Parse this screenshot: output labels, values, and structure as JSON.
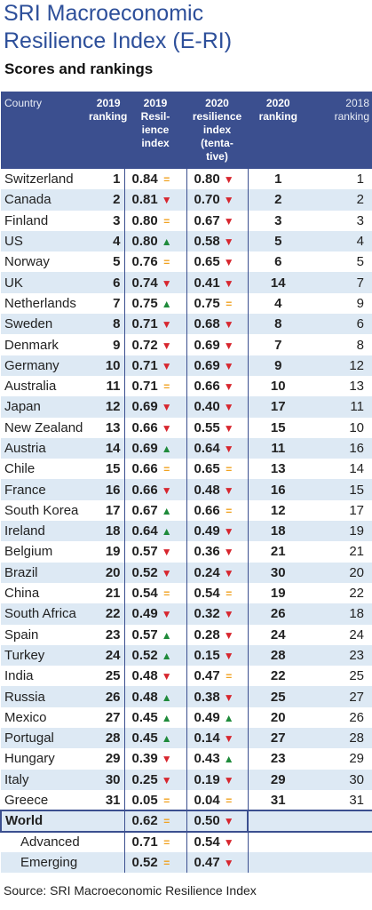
{
  "title_line1": "SRI Macroeconomic",
  "title_line2": "Resilience Index (E-RI)",
  "subtitle": "Scores and rankings",
  "headers": {
    "country": "Country",
    "rank2019_a": "2019",
    "rank2019_b": "ranking",
    "idx2019_a": "2019",
    "idx2019_b": "Resil-",
    "idx2019_c": "ience",
    "idx2019_d": "index",
    "idx2020_a": "2020",
    "idx2020_b": "resilience",
    "idx2020_c": "index",
    "idx2020_d": "(tenta-",
    "idx2020_e": "tive)",
    "rank2020_a": "2020",
    "rank2020_b": "ranking",
    "rank2018_a": "2018",
    "rank2018_b": "ranking"
  },
  "colors": {
    "header_bg": "#3b4f8f",
    "stripe": "#dde9f4",
    "up": "#1e8a3a",
    "down": "#d7262e",
    "eq": "#f0a220",
    "title": "#2d4f9a"
  },
  "chart_data": {
    "type": "table",
    "columns": [
      "Country",
      "2019 ranking",
      "2019 Resilience index",
      "2020 resilience index (tentative)",
      "2020 ranking",
      "2018 ranking"
    ],
    "rows": [
      {
        "country": "Switzerland",
        "r2019": "1",
        "i2019": "0.84",
        "m2019": "eq",
        "i2020": "0.80",
        "m2020": "down",
        "r2020": "1",
        "r2018": "1"
      },
      {
        "country": "Canada",
        "r2019": "2",
        "i2019": "0.81",
        "m2019": "down",
        "i2020": "0.70",
        "m2020": "down",
        "r2020": "2",
        "r2018": "2"
      },
      {
        "country": "Finland",
        "r2019": "3",
        "i2019": "0.80",
        "m2019": "eq",
        "i2020": "0.67",
        "m2020": "down",
        "r2020": "3",
        "r2018": "3"
      },
      {
        "country": "US",
        "r2019": "4",
        "i2019": "0.80",
        "m2019": "up",
        "i2020": "0.58",
        "m2020": "down",
        "r2020": "5",
        "r2018": "4"
      },
      {
        "country": "Norway",
        "r2019": "5",
        "i2019": "0.76",
        "m2019": "eq",
        "i2020": "0.65",
        "m2020": "down",
        "r2020": "6",
        "r2018": "5"
      },
      {
        "country": "UK",
        "r2019": "6",
        "i2019": "0.74",
        "m2019": "down",
        "i2020": "0.41",
        "m2020": "down",
        "r2020": "14",
        "r2018": "7"
      },
      {
        "country": "Netherlands",
        "r2019": "7",
        "i2019": "0.75",
        "m2019": "up",
        "i2020": "0.75",
        "m2020": "eq",
        "r2020": "4",
        "r2018": "9"
      },
      {
        "country": "Sweden",
        "r2019": "8",
        "i2019": "0.71",
        "m2019": "down",
        "i2020": "0.68",
        "m2020": "down",
        "r2020": "8",
        "r2018": "6"
      },
      {
        "country": "Denmark",
        "r2019": "9",
        "i2019": "0.72",
        "m2019": "down",
        "i2020": "0.69",
        "m2020": "down",
        "r2020": "7",
        "r2018": "8"
      },
      {
        "country": "Germany",
        "r2019": "10",
        "i2019": "0.71",
        "m2019": "down",
        "i2020": "0.69",
        "m2020": "down",
        "r2020": "9",
        "r2018": "12"
      },
      {
        "country": "Australia",
        "r2019": "11",
        "i2019": "0.71",
        "m2019": "eq",
        "i2020": "0.66",
        "m2020": "down",
        "r2020": "10",
        "r2018": "13"
      },
      {
        "country": "Japan",
        "r2019": "12",
        "i2019": "0.69",
        "m2019": "down",
        "i2020": "0.40",
        "m2020": "down",
        "r2020": "17",
        "r2018": "11"
      },
      {
        "country": "New Zealand",
        "r2019": "13",
        "i2019": "0.66",
        "m2019": "down",
        "i2020": "0.55",
        "m2020": "down",
        "r2020": "15",
        "r2018": "10"
      },
      {
        "country": "Austria",
        "r2019": "14",
        "i2019": "0.69",
        "m2019": "up",
        "i2020": "0.64",
        "m2020": "down",
        "r2020": "11",
        "r2018": "16"
      },
      {
        "country": "Chile",
        "r2019": "15",
        "i2019": "0.66",
        "m2019": "eq",
        "i2020": "0.65",
        "m2020": "eq",
        "r2020": "13",
        "r2018": "14"
      },
      {
        "country": "France",
        "r2019": "16",
        "i2019": "0.66",
        "m2019": "down",
        "i2020": "0.48",
        "m2020": "down",
        "r2020": "16",
        "r2018": "15"
      },
      {
        "country": "South Korea",
        "r2019": "17",
        "i2019": "0.67",
        "m2019": "up",
        "i2020": "0.66",
        "m2020": "eq",
        "r2020": "12",
        "r2018": "17"
      },
      {
        "country": "Ireland",
        "r2019": "18",
        "i2019": "0.64",
        "m2019": "up",
        "i2020": "0.49",
        "m2020": "down",
        "r2020": "18",
        "r2018": "19"
      },
      {
        "country": "Belgium",
        "r2019": "19",
        "i2019": "0.57",
        "m2019": "down",
        "i2020": "0.36",
        "m2020": "down",
        "r2020": "21",
        "r2018": "21"
      },
      {
        "country": "Brazil",
        "r2019": "20",
        "i2019": "0.52",
        "m2019": "down",
        "i2020": "0.24",
        "m2020": "down",
        "r2020": "30",
        "r2018": "20"
      },
      {
        "country": "China",
        "r2019": "21",
        "i2019": "0.54",
        "m2019": "eq",
        "i2020": "0.54",
        "m2020": "eq",
        "r2020": "19",
        "r2018": "22"
      },
      {
        "country": "South Africa",
        "r2019": "22",
        "i2019": "0.49",
        "m2019": "down",
        "i2020": "0.32",
        "m2020": "down",
        "r2020": "26",
        "r2018": "18"
      },
      {
        "country": "Spain",
        "r2019": "23",
        "i2019": "0.57",
        "m2019": "up",
        "i2020": "0.28",
        "m2020": "down",
        "r2020": "24",
        "r2018": "24"
      },
      {
        "country": "Turkey",
        "r2019": "24",
        "i2019": "0.52",
        "m2019": "up",
        "i2020": "0.15",
        "m2020": "down",
        "r2020": "28",
        "r2018": "23"
      },
      {
        "country": "India",
        "r2019": "25",
        "i2019": "0.48",
        "m2019": "down",
        "i2020": "0.47",
        "m2020": "eq",
        "r2020": "22",
        "r2018": "25"
      },
      {
        "country": "Russia",
        "r2019": "26",
        "i2019": "0.48",
        "m2019": "up",
        "i2020": "0.38",
        "m2020": "down",
        "r2020": "25",
        "r2018": "27"
      },
      {
        "country": "Mexico",
        "r2019": "27",
        "i2019": "0.45",
        "m2019": "up",
        "i2020": "0.49",
        "m2020": "up",
        "r2020": "20",
        "r2018": "26"
      },
      {
        "country": "Portugal",
        "r2019": "28",
        "i2019": "0.45",
        "m2019": "up",
        "i2020": "0.14",
        "m2020": "down",
        "r2020": "27",
        "r2018": "28"
      },
      {
        "country": "Hungary",
        "r2019": "29",
        "i2019": "0.39",
        "m2019": "down",
        "i2020": "0.43",
        "m2020": "up",
        "r2020": "23",
        "r2018": "29"
      },
      {
        "country": "Italy",
        "r2019": "30",
        "i2019": "0.25",
        "m2019": "down",
        "i2020": "0.19",
        "m2020": "down",
        "r2020": "29",
        "r2018": "30"
      },
      {
        "country": "Greece",
        "r2019": "31",
        "i2019": "0.05",
        "m2019": "eq",
        "i2020": "0.04",
        "m2020": "eq",
        "r2020": "31",
        "r2018": "31"
      }
    ],
    "aggregates": [
      {
        "country": "World",
        "kind": "world",
        "i2019": "0.62",
        "m2019": "eq",
        "i2020": "0.50",
        "m2020": "down"
      },
      {
        "country": "Advanced",
        "kind": "sub",
        "i2019": "0.71",
        "m2019": "eq",
        "i2020": "0.54",
        "m2020": "down"
      },
      {
        "country": "Emerging",
        "kind": "sub",
        "i2019": "0.52",
        "m2019": "eq",
        "i2020": "0.47",
        "m2020": "down"
      }
    ]
  },
  "source": "Source: SRI Macroeconomic Resilience Index"
}
